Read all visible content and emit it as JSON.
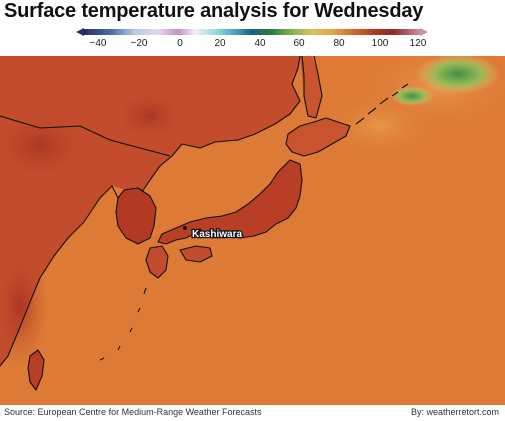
{
  "title": "Surface temperature analysis for Wednesday",
  "legend": {
    "ticks": [
      "−40",
      "−20",
      "0",
      "20",
      "40",
      "60",
      "80",
      "100",
      "120"
    ]
  },
  "map": {
    "city_label": "Kashiwara",
    "colors": {
      "land_hot": "#b8402a",
      "ocean_warm": "#dd7a36",
      "cool_green": "#5a9a4a",
      "coastline": "#111111"
    }
  },
  "footer": {
    "source": "Source: European Centre for Medium-Range Weather Forecasts",
    "byline": "By: weatherretort.com"
  }
}
